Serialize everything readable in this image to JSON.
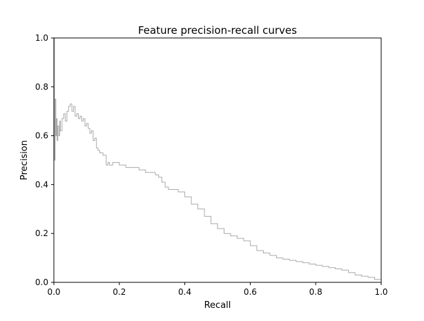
{
  "chart_data": {
    "type": "line",
    "title": "Feature precision-recall curves",
    "xlabel": "Recall",
    "ylabel": "Precision",
    "xlim": [
      0.0,
      1.0
    ],
    "ylim": [
      0.0,
      1.0
    ],
    "x_ticks": [
      "0.0",
      "0.2",
      "0.4",
      "0.6",
      "0.8",
      "1.0"
    ],
    "y_ticks": [
      "0.0",
      "0.2",
      "0.4",
      "0.6",
      "0.8",
      "1.0"
    ],
    "grid": false,
    "step": true,
    "series": [
      {
        "color": "#aaaaaa",
        "x": [
          0.0,
          0.002,
          0.004,
          0.006,
          0.008,
          0.01,
          0.012,
          0.015,
          0.018,
          0.02,
          0.025,
          0.03,
          0.035,
          0.04,
          0.045,
          0.05,
          0.055,
          0.06,
          0.065,
          0.07,
          0.075,
          0.08,
          0.085,
          0.09,
          0.095,
          0.1,
          0.105,
          0.11,
          0.115,
          0.12,
          0.125,
          0.13,
          0.135,
          0.14,
          0.15,
          0.16,
          0.165,
          0.17,
          0.18,
          0.2,
          0.22,
          0.24,
          0.26,
          0.28,
          0.3,
          0.31,
          0.32,
          0.33,
          0.34,
          0.35,
          0.36,
          0.38,
          0.4,
          0.42,
          0.44,
          0.46,
          0.48,
          0.5,
          0.52,
          0.54,
          0.56,
          0.58,
          0.6,
          0.62,
          0.64,
          0.66,
          0.68,
          0.7,
          0.72,
          0.74,
          0.76,
          0.78,
          0.8,
          0.82,
          0.84,
          0.86,
          0.88,
          0.9,
          0.92,
          0.94,
          0.96,
          0.98,
          1.0
        ],
        "y": [
          1.0,
          0.5,
          0.75,
          0.6,
          0.67,
          0.58,
          0.64,
          0.6,
          0.66,
          0.62,
          0.67,
          0.69,
          0.66,
          0.7,
          0.72,
          0.73,
          0.7,
          0.72,
          0.68,
          0.69,
          0.67,
          0.68,
          0.66,
          0.67,
          0.64,
          0.65,
          0.63,
          0.61,
          0.62,
          0.58,
          0.59,
          0.55,
          0.54,
          0.53,
          0.52,
          0.48,
          0.49,
          0.48,
          0.49,
          0.48,
          0.47,
          0.47,
          0.46,
          0.45,
          0.45,
          0.44,
          0.43,
          0.41,
          0.39,
          0.38,
          0.38,
          0.37,
          0.35,
          0.32,
          0.3,
          0.27,
          0.24,
          0.22,
          0.2,
          0.19,
          0.18,
          0.17,
          0.15,
          0.13,
          0.12,
          0.11,
          0.1,
          0.095,
          0.09,
          0.085,
          0.08,
          0.075,
          0.07,
          0.065,
          0.06,
          0.055,
          0.05,
          0.04,
          0.03,
          0.025,
          0.02,
          0.012,
          0.005
        ]
      }
    ]
  }
}
